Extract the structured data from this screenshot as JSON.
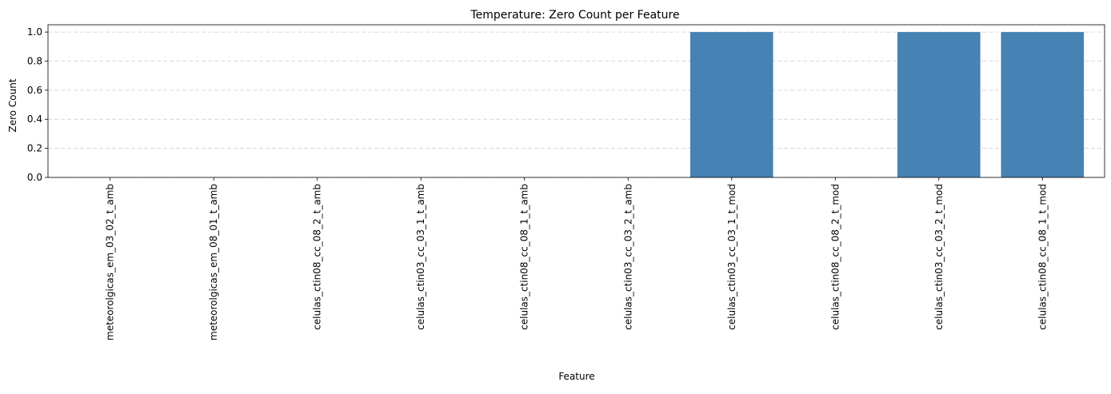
{
  "chart_data": {
    "type": "bar",
    "title": "Temperature: Zero Count per Feature",
    "xlabel": "Feature",
    "ylabel": "Zero Count",
    "categories": [
      "meteorolgicas_em_03_02_t_amb",
      "meteorolgicas_em_08_01_t_amb",
      "celulas_ctin08_cc_08_2_t_amb",
      "celulas_ctin03_cc_03_1_t_amb",
      "celulas_ctin08_cc_08_1_t_amb",
      "celulas_ctin03_cc_03_2_t_amb",
      "celulas_ctin03_cc_03_1_t_mod",
      "celulas_ctin08_cc_08_2_t_mod",
      "celulas_ctin03_cc_03_2_t_mod",
      "celulas_ctin08_cc_08_1_t_mod"
    ],
    "values": [
      0,
      0,
      0,
      0,
      0,
      0,
      1,
      0,
      1,
      1
    ],
    "ylim": [
      0,
      1.05
    ],
    "yticks": [
      0.0,
      0.2,
      0.4,
      0.6,
      0.8,
      1.0
    ],
    "ytick_labels": [
      "0.0",
      "0.2",
      "0.4",
      "0.6",
      "0.8",
      "1.0"
    ],
    "grid": "y-dashed",
    "bar_color": "#4682b4",
    "grid_color": "#cccccc"
  }
}
